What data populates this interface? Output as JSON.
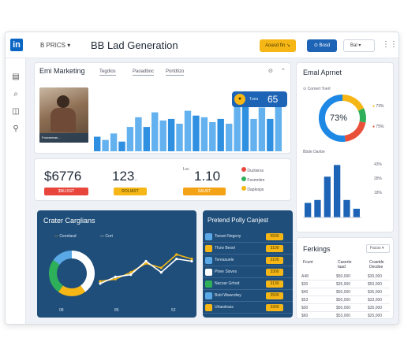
{
  "header": {
    "logo": "in",
    "workspace": "B PRICS",
    "title": "BB Lad Generation",
    "btn_primary": "Aoasd fin ↘",
    "btn_secondary": "⊙ Bosd",
    "select_label": "Bal",
    "menu": "⋮⋮"
  },
  "sidebar": {
    "items": [
      {
        "icon": "list-icon",
        "glyph": "▤"
      },
      {
        "icon": "search-icon",
        "glyph": "⌕"
      },
      {
        "icon": "cube-icon",
        "glyph": "◫"
      },
      {
        "icon": "link-icon",
        "glyph": "⚲"
      }
    ]
  },
  "email_card": {
    "title": "Emi Marketing",
    "tabs": [
      "Tegdios",
      "Paoadboc",
      "Portdlizo"
    ],
    "photo_caption": "Foncmeran...",
    "badge_value": "65",
    "badge_label": "Tuea",
    "chart_data": {
      "type": "bar",
      "values": [
        18,
        14,
        22,
        12,
        30,
        42,
        30,
        48,
        38,
        40,
        34,
        50,
        44,
        42,
        36,
        40,
        34,
        62,
        66,
        40,
        54,
        40,
        60
      ],
      "ylim": [
        0,
        70
      ]
    }
  },
  "email_agent": {
    "title": "Emal Aprnet",
    "subtitle": "⊙ Cornert Toert",
    "donut_value": "73%",
    "legend": [
      "73%",
      "75%"
    ],
    "chart_data": {
      "type": "pie",
      "values": [
        18,
        10,
        20,
        52
      ],
      "colors": [
        "#f6b716",
        "#2eb05a",
        "#e8503a",
        "#1e88e5"
      ]
    },
    "bars_title": "Bbde Danbe",
    "bar_legend": [
      "43%",
      "28%",
      "18%"
    ],
    "bar_chart": {
      "type": "bar",
      "values": [
        10,
        12,
        28,
        36,
        12,
        6
      ],
      "ylim": [
        0,
        40
      ]
    }
  },
  "kpis": [
    {
      "value": "$6776",
      "pill": "$NLISST",
      "pill_color": "#e8463d"
    },
    {
      "value": "123",
      "unit": "..",
      "pill": "ROLIAST",
      "pill_color": "#f6b716"
    },
    {
      "value": "1.10",
      "prefix": "Lcc",
      "pill": "SAUST",
      "pill_color": "#f5a316"
    }
  ],
  "kpi_legend": [
    {
      "color": "#e8463d",
      "label": "Ductwrss"
    },
    {
      "color": "#2eb05a",
      "label": "Fosmnlen"
    },
    {
      "color": "#f6b716",
      "label": "Daplosps"
    }
  ],
  "campaigns": {
    "title": "Crater Carglians",
    "legend": [
      "Ceonlasd",
      "Cort"
    ],
    "x_labels": [
      "08",
      "85",
      "52"
    ],
    "chart_data": {
      "type": "line",
      "series": [
        {
          "values": [
            14,
            16,
            22,
            30,
            26,
            38,
            34
          ],
          "color": "#f6b716"
        },
        {
          "values": [
            12,
            18,
            20,
            32,
            22,
            34,
            32
          ],
          "color": "#ffffff"
        }
      ],
      "donut": [
        40,
        20,
        25,
        15
      ],
      "donut_colors": [
        "#ffffff",
        "#f6b716",
        "#2eb05a",
        "#5aa9e6"
      ]
    }
  },
  "poll": {
    "title": "Pretend Polly Canjest",
    "rows": [
      {
        "name": "Toeset Negeny",
        "value": "5500"
      },
      {
        "name": "Thzw Besel",
        "value": "3100"
      },
      {
        "name": "Toreasuele",
        "value": "3100"
      },
      {
        "name": "Ptree Sisves",
        "value": "3300"
      },
      {
        "name": "Nacoar Grhod",
        "value": "3130"
      },
      {
        "name": "Bold Wawcdwy",
        "value": "3500"
      },
      {
        "name": "Ulrasdrass",
        "value": "3300"
      }
    ]
  },
  "rankings": {
    "title": "Ferkings",
    "select": "Facos",
    "headers": [
      "Fcunt",
      "Caserte Iaad",
      "Ccaetde Decdoe"
    ],
    "rows": [
      [
        "A48",
        "$50,000",
        "$30,000"
      ],
      [
        "$30",
        "$35,900",
        "$50,000"
      ],
      [
        "$40",
        "$50,000",
        "$35,000"
      ],
      [
        "$53",
        "$50,000",
        "$33,000"
      ],
      [
        "$00",
        "$50,000",
        "$35,000"
      ],
      [
        "$60",
        "$53,000",
        "$25,000"
      ]
    ]
  }
}
